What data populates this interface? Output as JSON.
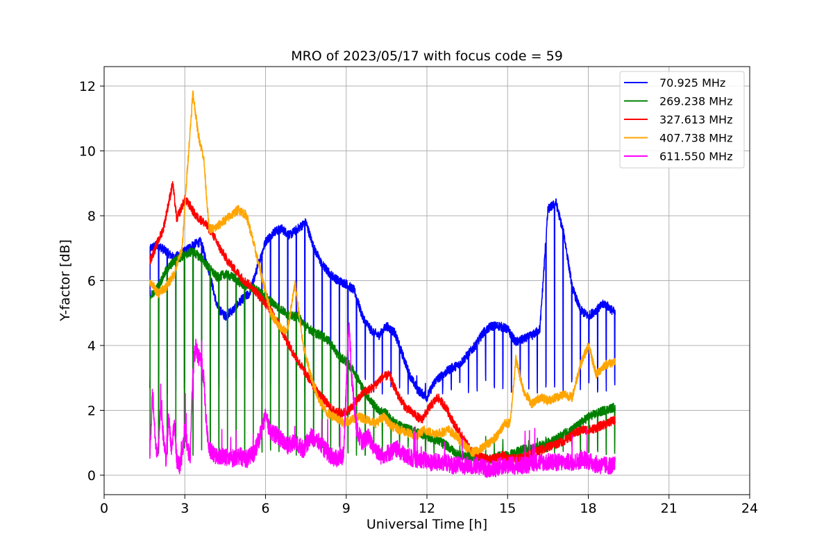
{
  "chart_data": {
    "type": "line",
    "title": "MRO of 2023/05/17 with focus code = 59",
    "xlabel": "Universal Time [h]",
    "ylabel": "Y-factor [dB]",
    "xlim": [
      0,
      24
    ],
    "ylim": [
      -0.6,
      12.6
    ],
    "xticks": [
      0,
      3,
      6,
      9,
      12,
      15,
      18,
      21,
      24
    ],
    "xtick_labels": [
      "0",
      "3",
      "6",
      "9",
      "12",
      "15",
      "18",
      "21",
      "24"
    ],
    "yticks": [
      0,
      2,
      4,
      6,
      8,
      10,
      12
    ],
    "ytick_labels": [
      "0",
      "2",
      "4",
      "6",
      "8",
      "10",
      "12"
    ],
    "grid": true,
    "legend_position": "top-right",
    "series": [
      {
        "name": " 70.925 MHz",
        "color": "#0000ff",
        "x": [
          1.7,
          2.0,
          2.3,
          2.6,
          3.0,
          3.3,
          3.6,
          3.9,
          4.2,
          4.5,
          4.8,
          5.1,
          5.4,
          5.7,
          6.0,
          6.3,
          6.6,
          6.9,
          7.2,
          7.5,
          7.8,
          8.1,
          8.4,
          8.7,
          9.0,
          9.3,
          9.6,
          9.9,
          10.2,
          10.5,
          10.8,
          11.1,
          11.4,
          11.7,
          12.0,
          12.3,
          12.6,
          12.9,
          13.2,
          13.5,
          13.8,
          14.1,
          14.4,
          14.7,
          15.0,
          15.3,
          15.6,
          15.9,
          16.2,
          16.5,
          16.8,
          17.1,
          17.4,
          17.7,
          18.0,
          18.3,
          18.6,
          19.0
        ],
        "y": [
          7.0,
          7.1,
          6.9,
          6.7,
          6.9,
          7.1,
          7.2,
          6.3,
          5.2,
          4.9,
          5.1,
          5.4,
          5.6,
          6.4,
          7.2,
          7.5,
          7.6,
          7.4,
          7.6,
          7.8,
          7.0,
          6.5,
          6.2,
          6.0,
          5.9,
          5.7,
          4.9,
          4.5,
          4.3,
          4.6,
          4.4,
          3.7,
          3.0,
          2.6,
          2.4,
          2.9,
          3.1,
          3.3,
          3.4,
          3.7,
          4.0,
          4.4,
          4.6,
          4.6,
          4.5,
          4.1,
          4.2,
          4.3,
          4.5,
          8.2,
          8.4,
          7.4,
          5.8,
          5.1,
          4.9,
          5.1,
          5.3,
          5.0
        ],
        "dip_period_h": 0.32,
        "dip_y": 2.8
      },
      {
        "name": "269.238 MHz",
        "color": "#008000",
        "x": [
          1.7,
          2.0,
          2.3,
          2.6,
          3.0,
          3.3,
          3.6,
          3.9,
          4.2,
          4.5,
          4.8,
          5.1,
          5.4,
          5.7,
          6.0,
          6.3,
          6.6,
          6.9,
          7.2,
          7.5,
          7.8,
          8.1,
          8.4,
          8.7,
          9.0,
          9.3,
          9.6,
          9.9,
          10.2,
          10.5,
          10.8,
          11.1,
          11.4,
          11.7,
          12.0,
          12.3,
          12.6,
          12.9,
          13.2,
          13.5,
          13.8,
          14.1,
          14.4,
          14.7,
          15.0,
          15.3,
          15.6,
          15.9,
          16.2,
          16.5,
          16.8,
          17.1,
          17.4,
          17.7,
          18.0,
          18.3,
          18.6,
          19.0
        ],
        "y": [
          5.5,
          5.8,
          6.3,
          6.6,
          6.8,
          6.9,
          6.7,
          6.4,
          6.1,
          6.2,
          6.1,
          5.9,
          5.8,
          5.7,
          5.5,
          5.3,
          5.1,
          4.9,
          4.9,
          4.6,
          4.4,
          4.3,
          4.1,
          3.7,
          3.5,
          3.2,
          2.7,
          2.3,
          2.0,
          1.9,
          1.6,
          1.5,
          1.4,
          1.3,
          1.2,
          1.1,
          1.0,
          0.8,
          0.6,
          0.6,
          0.5,
          0.5,
          0.5,
          0.6,
          0.6,
          0.7,
          0.8,
          0.8,
          0.9,
          1.0,
          1.1,
          1.3,
          1.4,
          1.6,
          1.8,
          1.9,
          2.0,
          2.1
        ],
        "dip_period_h": 0.32,
        "dip_y": 0.9
      },
      {
        "name": "327.613 MHz",
        "color": "#ff0000",
        "x": [
          1.7,
          2.0,
          2.2,
          2.4,
          2.55,
          2.7,
          3.0,
          3.2,
          3.4,
          3.7,
          4.0,
          4.3,
          4.6,
          4.9,
          5.2,
          5.5,
          5.8,
          6.1,
          6.4,
          6.7,
          7.0,
          7.3,
          7.6,
          7.9,
          8.2,
          8.5,
          8.8,
          9.1,
          9.4,
          9.7,
          10.0,
          10.3,
          10.6,
          10.9,
          11.2,
          11.5,
          11.8,
          12.1,
          12.4,
          12.7,
          13.0,
          13.3,
          13.6,
          13.9,
          14.2,
          14.5,
          14.8,
          15.1,
          15.4,
          15.7,
          16.0,
          16.3,
          16.6,
          16.9,
          17.2,
          17.5,
          17.8,
          18.1,
          18.4,
          18.7,
          19.0
        ],
        "y": [
          6.6,
          7.2,
          7.6,
          8.4,
          9.0,
          7.9,
          8.5,
          8.3,
          8.0,
          7.8,
          7.5,
          7.0,
          6.6,
          6.3,
          6.0,
          5.8,
          5.5,
          5.2,
          4.8,
          4.3,
          3.8,
          3.4,
          3.0,
          2.6,
          2.3,
          2.0,
          1.9,
          2.0,
          2.3,
          2.6,
          2.7,
          3.0,
          3.1,
          2.5,
          2.1,
          1.9,
          1.7,
          2.1,
          2.4,
          2.1,
          1.6,
          1.2,
          0.8,
          0.6,
          0.5,
          0.5,
          0.6,
          0.5,
          0.5,
          0.6,
          0.7,
          0.8,
          0.9,
          1.0,
          1.1,
          1.3,
          1.4,
          1.4,
          1.5,
          1.6,
          1.7
        ]
      },
      {
        "name": "407.738 MHz",
        "color": "#ffa500",
        "x": [
          1.7,
          2.0,
          2.3,
          2.6,
          2.9,
          3.1,
          3.3,
          3.5,
          3.7,
          3.9,
          4.1,
          4.4,
          4.7,
          5.0,
          5.3,
          5.6,
          5.9,
          6.2,
          6.5,
          6.8,
          7.1,
          7.4,
          7.7,
          8.0,
          8.3,
          8.6,
          8.9,
          9.2,
          9.5,
          9.8,
          10.1,
          10.4,
          10.7,
          11.0,
          11.3,
          11.6,
          11.9,
          12.2,
          12.5,
          12.8,
          13.1,
          13.4,
          13.7,
          14.0,
          14.3,
          14.6,
          14.9,
          15.1,
          15.3,
          15.6,
          15.9,
          16.2,
          16.5,
          16.8,
          17.1,
          17.4,
          17.7,
          18.0,
          18.3,
          18.6,
          19.0
        ],
        "y": [
          6.0,
          5.6,
          5.8,
          6.2,
          7.0,
          9.5,
          11.8,
          10.5,
          9.8,
          7.6,
          7.6,
          7.8,
          8.0,
          8.2,
          8.0,
          7.0,
          6.0,
          5.0,
          4.6,
          4.4,
          5.9,
          4.0,
          3.0,
          2.3,
          1.9,
          1.8,
          1.6,
          1.7,
          1.8,
          1.7,
          1.6,
          1.8,
          1.5,
          1.4,
          1.3,
          1.2,
          1.4,
          1.3,
          1.3,
          1.4,
          1.2,
          0.9,
          0.7,
          0.8,
          1.0,
          1.2,
          1.6,
          1.6,
          3.6,
          2.6,
          2.2,
          2.4,
          2.3,
          2.4,
          2.5,
          2.4,
          3.4,
          4.0,
          3.1,
          3.4,
          3.5
        ]
      },
      {
        "name": "611.550 MHz",
        "color": "#ff00ff",
        "x": [
          1.7,
          1.8,
          1.9,
          2.0,
          2.1,
          2.2,
          2.3,
          2.4,
          2.5,
          2.6,
          2.7,
          2.8,
          2.9,
          3.0,
          3.1,
          3.2,
          3.3,
          3.4,
          3.5,
          3.6,
          3.7,
          3.8,
          3.9,
          4.1,
          4.4,
          4.7,
          5.0,
          5.3,
          5.6,
          5.9,
          6.0,
          6.2,
          6.5,
          6.8,
          7.1,
          7.4,
          7.7,
          8.0,
          8.3,
          8.6,
          8.9,
          9.0,
          9.1,
          9.2,
          9.4,
          9.6,
          9.8,
          10.0,
          10.3,
          10.6,
          10.9,
          11.2,
          11.5,
          11.8,
          12.1,
          12.4,
          12.7,
          13.0,
          13.3,
          13.6,
          13.9,
          14.2,
          14.5,
          14.8,
          15.1,
          15.4,
          15.7,
          16.0,
          16.3,
          16.6,
          16.9,
          17.2,
          17.5,
          17.8,
          18.1,
          18.4,
          18.7,
          19.0
        ],
        "y": [
          0.6,
          2.6,
          1.0,
          0.6,
          2.2,
          1.2,
          0.5,
          1.8,
          0.7,
          1.6,
          0.5,
          0.3,
          0.6,
          1.5,
          0.8,
          0.6,
          3.2,
          4.0,
          3.6,
          3.6,
          3.0,
          1.6,
          0.8,
          0.6,
          0.6,
          0.5,
          0.6,
          0.5,
          0.7,
          1.5,
          1.8,
          1.3,
          1.2,
          0.9,
          1.0,
          0.8,
          1.2,
          1.0,
          0.7,
          0.5,
          0.6,
          2.6,
          4.8,
          3.0,
          1.4,
          1.0,
          1.2,
          0.9,
          0.6,
          0.7,
          0.8,
          0.6,
          0.5,
          0.5,
          0.4,
          0.4,
          0.4,
          0.3,
          0.3,
          0.3,
          0.3,
          0.2,
          0.2,
          0.3,
          0.3,
          0.3,
          0.3,
          0.4,
          0.4,
          0.4,
          0.4,
          0.4,
          0.4,
          0.5,
          0.4,
          0.3,
          0.3,
          0.3
        ],
        "noise": 0.55
      }
    ]
  }
}
